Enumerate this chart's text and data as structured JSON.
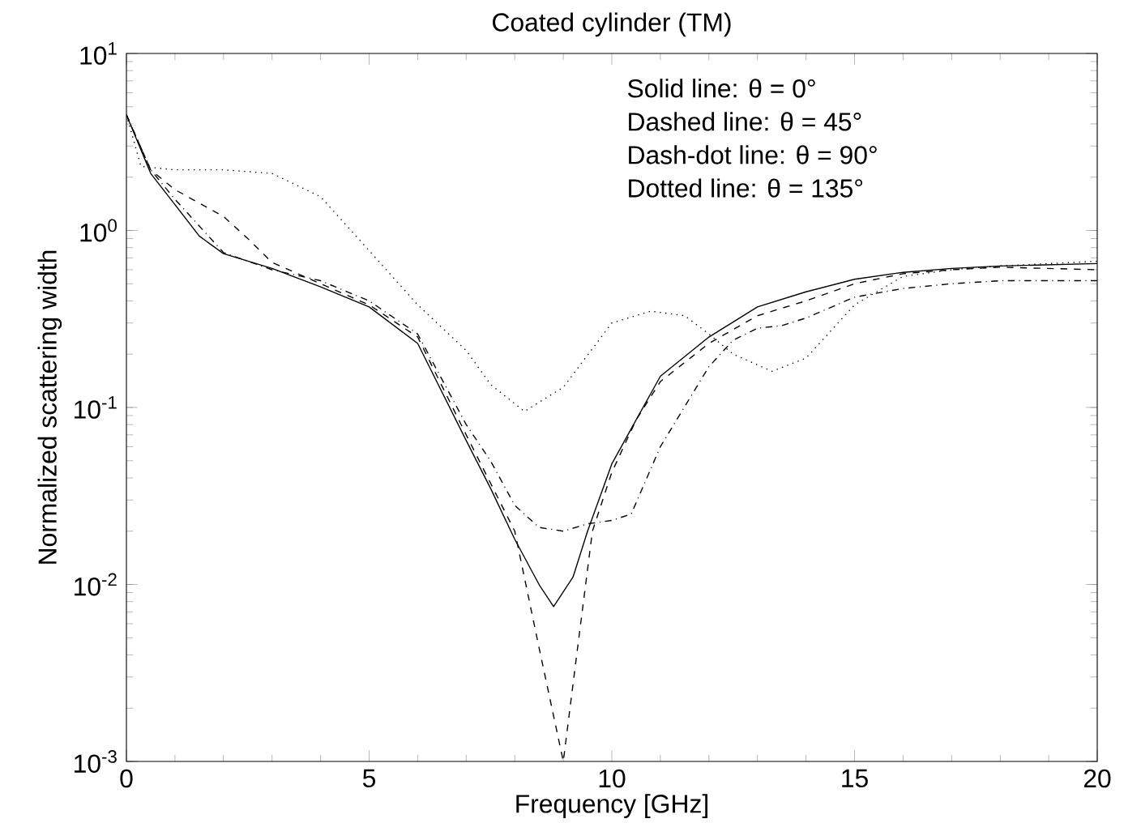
{
  "chart_data": {
    "type": "line",
    "title": "Coated cylinder (TM)",
    "xlabel": "Frequency [GHz]",
    "ylabel": "Normalized scattering width",
    "log": "y",
    "grid": false,
    "xlim": [
      0,
      20
    ],
    "ylim": [
      0.001,
      10
    ],
    "xticks": [
      0,
      5,
      10,
      15,
      20
    ],
    "yticks": [
      {
        "value": 0.001,
        "label": "10$^{-3}$"
      },
      {
        "value": 0.01,
        "label": "10$^{-2}$"
      },
      {
        "value": 0.1,
        "label": "10$^{-1}$"
      },
      {
        "value": 1,
        "label": "10$^{0}$"
      },
      {
        "value": 10,
        "label": "10$^{1}$"
      }
    ],
    "annotations": [
      "Solid line: θ = 0°",
      "Dashed line: θ = 45°",
      "Dash-dot line: θ = 90°",
      "Dotted line: θ = 135°"
    ],
    "series": [
      {
        "color": "#000000",
        "line_style": "solid",
        "x": [
          0,
          0.5,
          1,
          1.5,
          2,
          3,
          4,
          5,
          6,
          7,
          7.5,
          8,
          8.5,
          8.8,
          9.2,
          9.5,
          10,
          10.5,
          11,
          12,
          13,
          14,
          15,
          16,
          17,
          18,
          20
        ],
        "values": [
          4.5,
          2.1,
          1.4,
          0.93,
          0.74,
          0.61,
          0.48,
          0.37,
          0.23,
          0.065,
          0.035,
          0.018,
          0.01,
          0.0075,
          0.011,
          0.02,
          0.048,
          0.085,
          0.15,
          0.25,
          0.37,
          0.45,
          0.53,
          0.58,
          0.61,
          0.63,
          0.65
        ]
      },
      {
        "color": "#000000",
        "line_style": "dashed",
        "x": [
          0,
          0.5,
          1,
          2,
          2.5,
          3,
          4,
          5,
          6,
          7,
          8,
          8.5,
          9,
          9.3,
          9.6,
          10,
          10.5,
          11,
          12,
          13,
          14,
          15,
          16,
          17,
          18,
          20
        ],
        "values": [
          4.5,
          2.2,
          1.7,
          1.2,
          0.9,
          0.66,
          0.5,
          0.38,
          0.25,
          0.07,
          0.02,
          0.0044,
          0.001,
          0.0045,
          0.02,
          0.043,
          0.085,
          0.14,
          0.23,
          0.33,
          0.4,
          0.5,
          0.57,
          0.6,
          0.62,
          0.6
        ]
      },
      {
        "color": "#000000",
        "line_style": "dashdot",
        "x": [
          0,
          0.5,
          1,
          2,
          3,
          4,
          5,
          6,
          7,
          7.5,
          8,
          8.5,
          9,
          9.5,
          10,
          10.4,
          11,
          12,
          12.5,
          13,
          13.5,
          14,
          15,
          16,
          17,
          18,
          20
        ],
        "values": [
          4.5,
          2.2,
          1.5,
          0.75,
          0.6,
          0.52,
          0.4,
          0.26,
          0.08,
          0.05,
          0.028,
          0.021,
          0.02,
          0.022,
          0.023,
          0.025,
          0.06,
          0.17,
          0.24,
          0.28,
          0.29,
          0.32,
          0.42,
          0.47,
          0.5,
          0.52,
          0.52
        ]
      },
      {
        "color": "#000000",
        "line_style": "dotted",
        "x": [
          0,
          0.3,
          1,
          2,
          3,
          4,
          5,
          6,
          7,
          7.5,
          8.2,
          9,
          10,
          10.8,
          11.5,
          12,
          12.5,
          13.3,
          14,
          15,
          16,
          17,
          18,
          20
        ],
        "values": [
          4.5,
          2.3,
          2.2,
          2.2,
          2.1,
          1.55,
          0.77,
          0.38,
          0.21,
          0.135,
          0.095,
          0.13,
          0.3,
          0.35,
          0.33,
          0.26,
          0.2,
          0.16,
          0.19,
          0.38,
          0.55,
          0.6,
          0.63,
          0.67
        ]
      }
    ]
  }
}
